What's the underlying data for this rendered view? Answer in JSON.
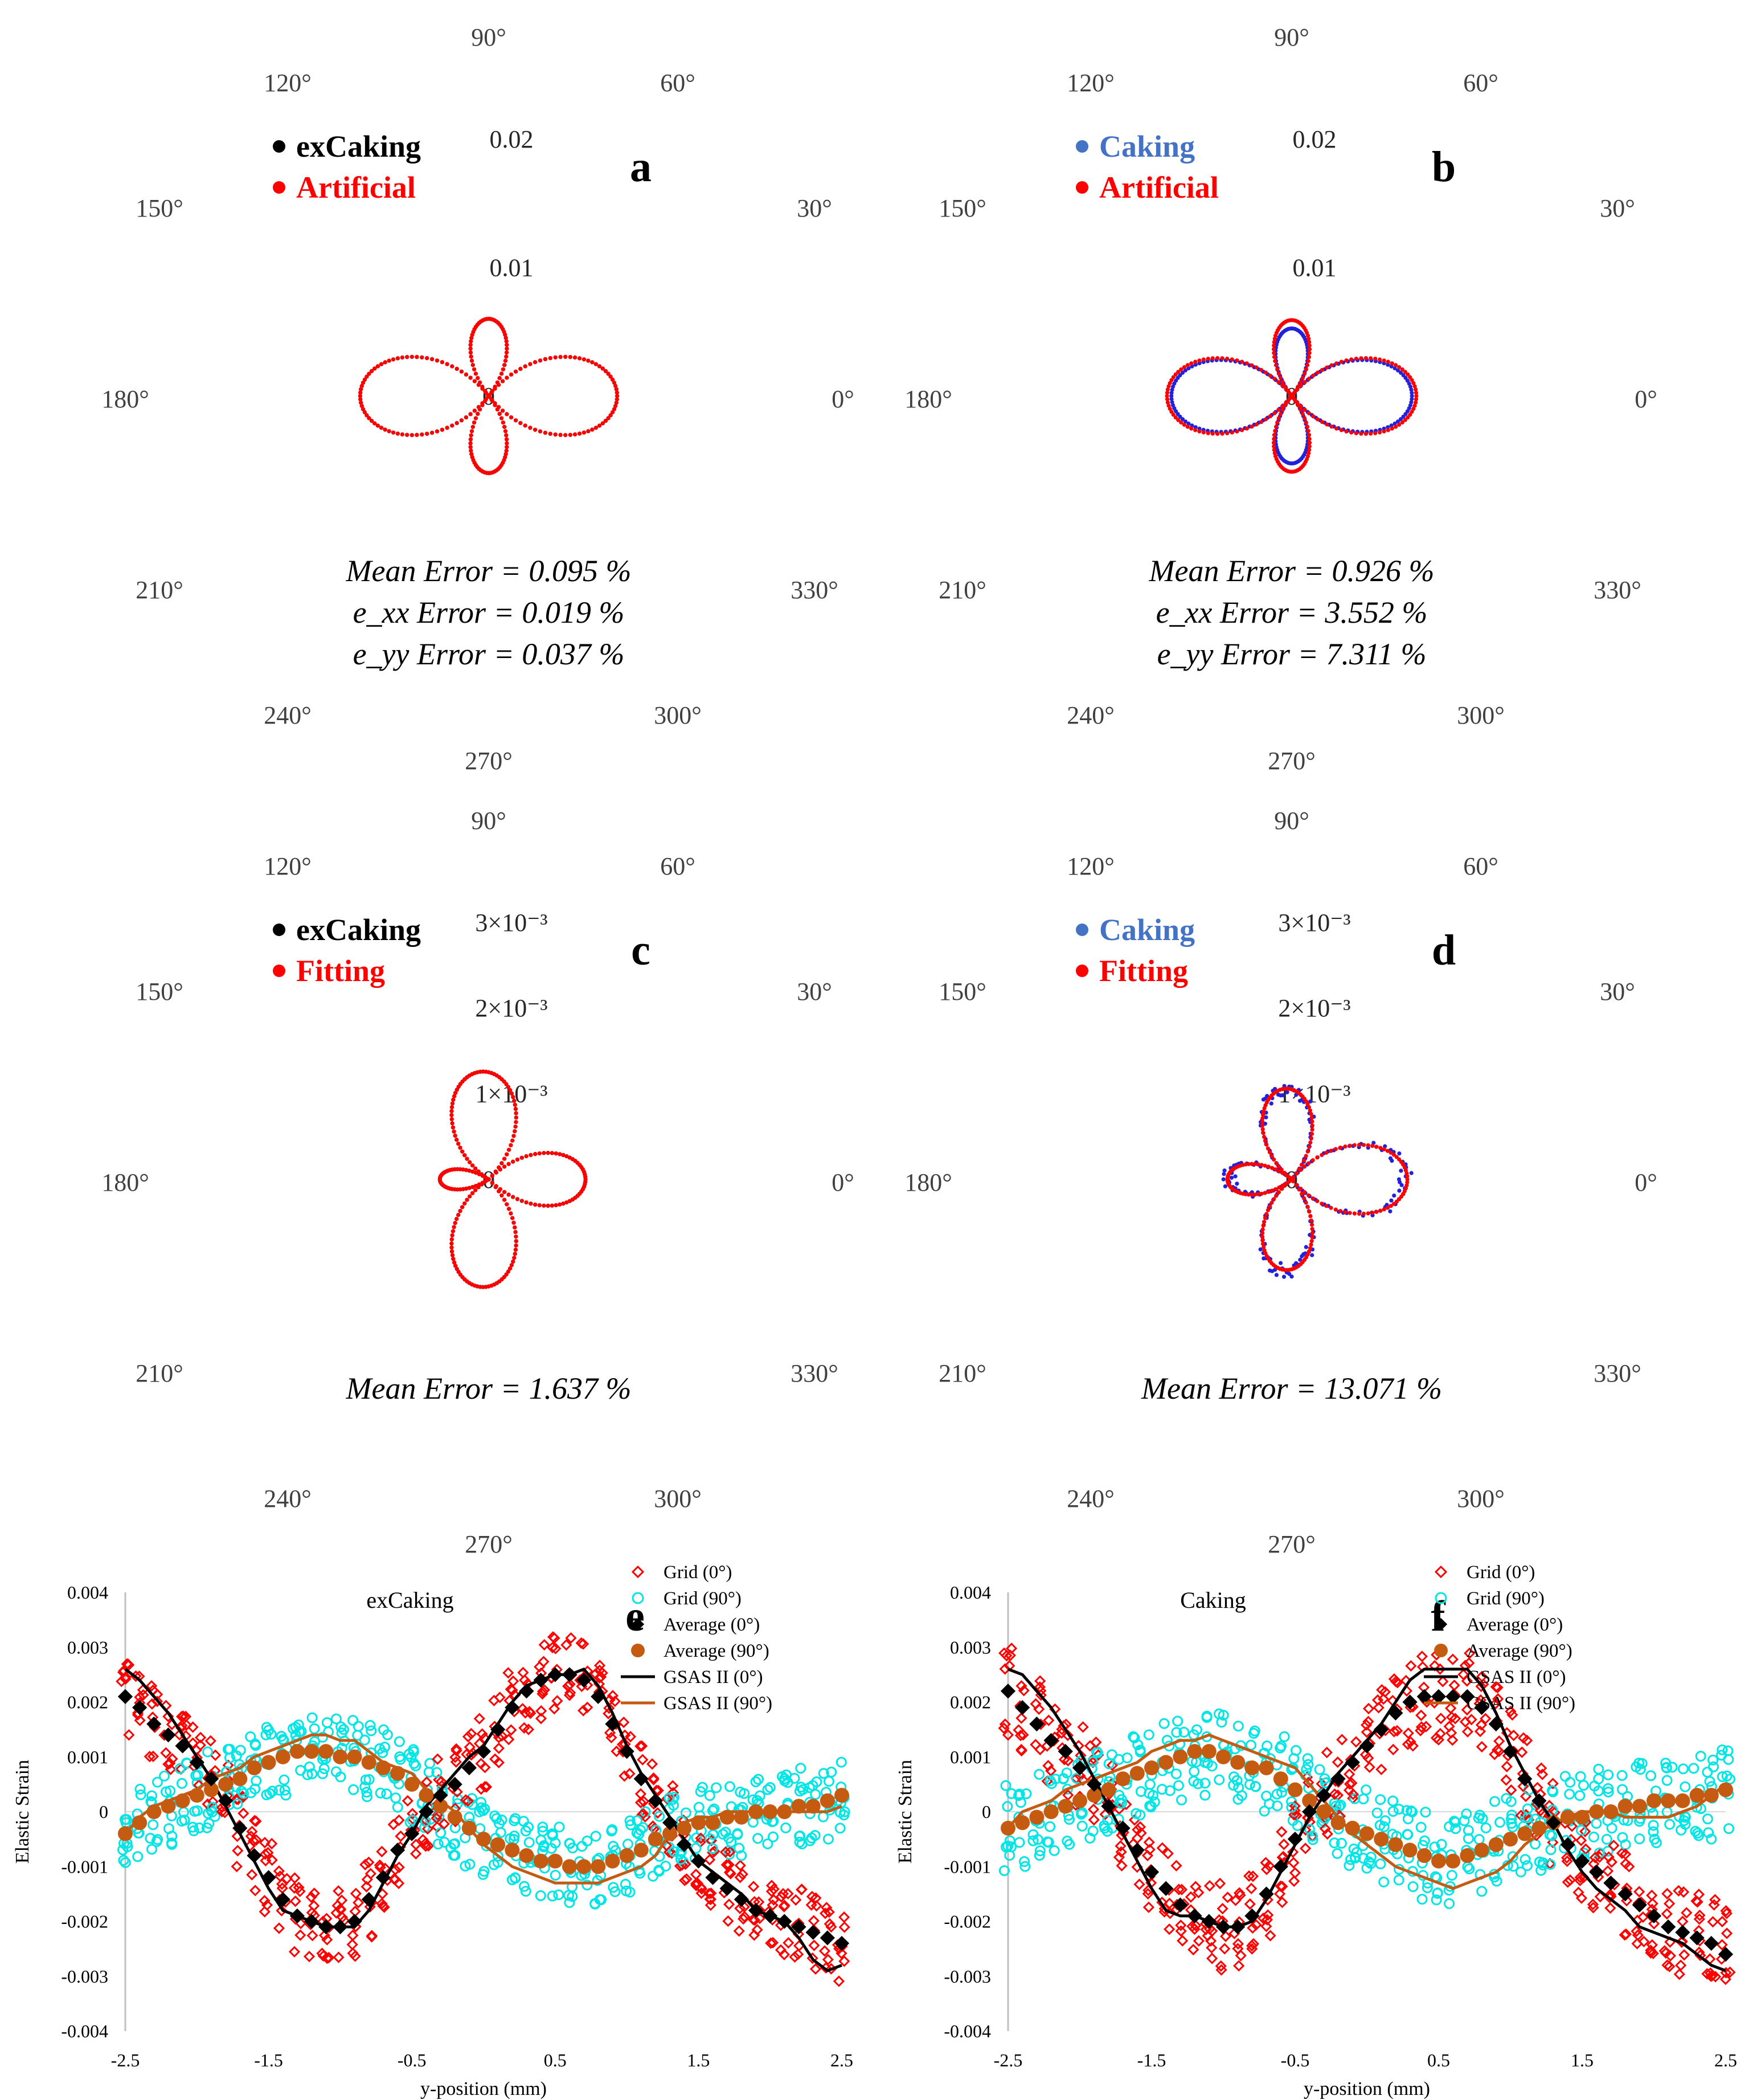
{
  "figure": {
    "angle_labels": [
      "0°",
      "30°",
      "60°",
      "90°",
      "120°",
      "150°",
      "180°",
      "210°",
      "240°",
      "270°",
      "300°",
      "330°"
    ]
  },
  "chart_data": [
    {
      "id": "a",
      "type": "polar",
      "panel_label": "a",
      "radial_ticks": [
        "0",
        "0.01",
        "0.02"
      ],
      "radial_range": [
        0,
        0.02
      ],
      "legend": [
        {
          "name": "exCaking",
          "color": "#000000",
          "legend_color": "#000000"
        },
        {
          "name": "Artificial",
          "color": "#ff0000",
          "legend_color": "#ff0000"
        }
      ],
      "strain_model": {
        "a": 0.008,
        "c": 0.002,
        "b": 0.0,
        "abs": true
      },
      "error_lines": [
        "Mean Error = 0.095 %",
        "e_xx Error = 0.019 %",
        "e_yy Error = 0.037 %"
      ]
    },
    {
      "id": "b",
      "type": "polar",
      "panel_label": "b",
      "radial_ticks": [
        "0",
        "0.01",
        "0.02"
      ],
      "radial_range": [
        0,
        0.02
      ],
      "legend": [
        {
          "name": "Caking",
          "color": "#2222dd",
          "legend_color": "#4472c4"
        },
        {
          "name": "Artificial",
          "color": "#ff0000",
          "legend_color": "#ff0000"
        }
      ],
      "strain_model": {
        "a": 0.0078,
        "c": 0.0019,
        "b": 0.0,
        "abs": true,
        "series1_scale": [
          0.965,
          0.89
        ]
      },
      "error_lines": [
        "Mean Error = 0.926 %",
        "e_xx Error = 3.552 %",
        "e_yy Error = 7.311 %"
      ]
    },
    {
      "id": "c",
      "type": "polar",
      "panel_label": "c",
      "radial_ticks": [
        "0",
        "1×10⁻³",
        "2×10⁻³",
        "3×10⁻³"
      ],
      "radial_range": [
        0,
        0.003
      ],
      "legend": [
        {
          "name": "exCaking",
          "color": "#000000",
          "legend_color": "#000000"
        },
        {
          "name": "Fitting",
          "color": "#ff0000",
          "legend_color": "#ff0000"
        }
      ],
      "strain_model": {
        "a": 0.00105,
        "c": -0.0002,
        "b": 0.00028,
        "abs": true
      },
      "error_lines": [
        "Mean Error = 1.637 %"
      ]
    },
    {
      "id": "d",
      "type": "polar",
      "panel_label": "d",
      "radial_ticks": [
        "0",
        "1×10⁻³",
        "2×10⁻³",
        "3×10⁻³"
      ],
      "radial_range": [
        0,
        0.003
      ],
      "legend": [
        {
          "name": "Caking",
          "color": "#2222dd",
          "legend_color": "#4472c4"
        },
        {
          "name": "Fitting",
          "color": "#ff0000",
          "legend_color": "#ff0000"
        }
      ],
      "strain_model": {
        "a": 0.00105,
        "c": 0.0,
        "b": 0.0003,
        "abs": true,
        "noise": 7e-05
      },
      "error_lines": [
        "Mean Error = 13.071 %"
      ]
    },
    {
      "id": "e",
      "type": "scatter",
      "panel_label": "e",
      "title": "exCaking",
      "xlabel": "y-position (mm)",
      "ylabel": "Elastic Strain",
      "xlim": [
        -2.5,
        2.5
      ],
      "ylim": [
        -0.004,
        0.004
      ],
      "xticks": [
        "-2.5",
        "-1.5",
        "-0.5",
        "0.5",
        "1.5",
        "2.5"
      ],
      "yticks": [
        "0.004",
        "0.003",
        "0.002",
        "0.001",
        "0",
        "-0.001",
        "-0.002",
        "-0.003",
        "-0.004"
      ],
      "legend": [
        "Grid (0°)",
        "Grid (90°)",
        "Average (0°)",
        "Average (90°)",
        "GSAS II (0°)",
        "GSAS II (90°)"
      ],
      "x": [
        -2.5,
        -2.4,
        -2.3,
        -2.2,
        -2.1,
        -2.0,
        -1.9,
        -1.8,
        -1.7,
        -1.6,
        -1.5,
        -1.4,
        -1.3,
        -1.2,
        -1.1,
        -1.0,
        -0.9,
        -0.8,
        -0.7,
        -0.6,
        -0.5,
        -0.4,
        -0.3,
        -0.2,
        -0.1,
        0.0,
        0.1,
        0.2,
        0.3,
        0.4,
        0.5,
        0.6,
        0.7,
        0.8,
        0.9,
        1.0,
        1.1,
        1.2,
        1.3,
        1.4,
        1.5,
        1.6,
        1.7,
        1.8,
        1.9,
        2.0,
        2.1,
        2.2,
        2.3,
        2.4,
        2.5
      ],
      "average_0": [
        0.0021,
        0.0019,
        0.0016,
        0.0014,
        0.0012,
        0.0009,
        0.0006,
        0.0002,
        -0.0003,
        -0.0008,
        -0.0012,
        -0.0016,
        -0.0019,
        -0.002,
        -0.0021,
        -0.0021,
        -0.002,
        -0.0016,
        -0.0012,
        -0.0007,
        -0.0004,
        0.0,
        0.0003,
        0.0005,
        0.0008,
        0.0011,
        0.0015,
        0.0019,
        0.0022,
        0.0024,
        0.0025,
        0.0025,
        0.0024,
        0.0021,
        0.0016,
        0.0011,
        0.0006,
        0.0002,
        -0.0002,
        -0.0006,
        -0.0009,
        -0.0012,
        -0.0014,
        -0.0016,
        -0.0018,
        -0.0019,
        -0.002,
        -0.0021,
        -0.0022,
        -0.0023,
        -0.0024
      ],
      "average_90": [
        -0.0004,
        -0.0002,
        0.0,
        0.0001,
        0.0002,
        0.0003,
        0.0004,
        0.0005,
        0.0006,
        0.0008,
        0.0009,
        0.001,
        0.0011,
        0.0011,
        0.0011,
        0.001,
        0.001,
        0.0009,
        0.0008,
        0.0007,
        0.0005,
        0.0003,
        0.0001,
        -0.0001,
        -0.0003,
        -0.0005,
        -0.0006,
        -0.0007,
        -0.0008,
        -0.0009,
        -0.0009,
        -0.001,
        -0.001,
        -0.001,
        -0.0009,
        -0.0008,
        -0.0007,
        -0.0005,
        -0.0004,
        -0.0003,
        -0.0002,
        -0.0002,
        -0.0001,
        -0.0001,
        0.0,
        0.0,
        0.0,
        0.0001,
        0.0001,
        0.0002,
        0.0003
      ],
      "gsas_0": [
        0.0026,
        0.0024,
        0.0021,
        0.0018,
        0.0014,
        0.001,
        0.0006,
        0.0001,
        -0.0004,
        -0.0009,
        -0.0014,
        -0.0018,
        -0.0019,
        -0.002,
        -0.0021,
        -0.0021,
        -0.0021,
        -0.0018,
        -0.0013,
        -0.0008,
        -0.0004,
        0.0001,
        0.0004,
        0.0007,
        0.001,
        0.0012,
        0.0016,
        0.002,
        0.0023,
        0.0024,
        0.0025,
        0.0025,
        0.0026,
        0.0023,
        0.0018,
        0.0012,
        0.0007,
        0.0003,
        -0.0001,
        -0.0005,
        -0.0009,
        -0.0011,
        -0.0013,
        -0.0015,
        -0.0018,
        -0.0019,
        -0.002,
        -0.0023,
        -0.0027,
        -0.0029,
        -0.0028
      ],
      "gsas_90": [
        -0.0004,
        -0.0001,
        0.0001,
        0.0002,
        0.0003,
        0.0004,
        0.0006,
        0.0007,
        0.0008,
        0.001,
        0.0011,
        0.0012,
        0.0013,
        0.0014,
        0.0014,
        0.0013,
        0.0013,
        0.0011,
        0.0009,
        0.0008,
        0.0007,
        0.0004,
        0.0002,
        0.0,
        -0.0003,
        -0.0006,
        -0.0008,
        -0.001,
        -0.0011,
        -0.0012,
        -0.0013,
        -0.0013,
        -0.0013,
        -0.0013,
        -0.0012,
        -0.0011,
        -0.001,
        -0.0008,
        -0.0004,
        -0.0002,
        -0.0001,
        -0.0001,
        0.0,
        0.0,
        0.0,
        0.0,
        0.0,
        0.0,
        0.0,
        0.0,
        0.0001
      ],
      "grid_spread": 0.0007,
      "seed": 7
    },
    {
      "id": "f",
      "type": "scatter",
      "panel_label": "f",
      "title": "Caking",
      "xlabel": "y-position (mm)",
      "ylabel": "Elastic Strain",
      "xlim": [
        -2.5,
        2.5
      ],
      "ylim": [
        -0.004,
        0.004
      ],
      "xticks": [
        "-2.5",
        "-1.5",
        "-0.5",
        "0.5",
        "1.5",
        "2.5"
      ],
      "yticks": [
        "0.004",
        "0.003",
        "0.002",
        "0.001",
        "0",
        "-0.001",
        "-0.002",
        "-0.003",
        "-0.004"
      ],
      "legend": [
        "Grid (0°)",
        "Grid (90°)",
        "Average (0°)",
        "Average (90°)",
        "GSAS II (0°)",
        "GSAS II (90°)"
      ],
      "x": [
        -2.5,
        -2.4,
        -2.3,
        -2.2,
        -2.1,
        -2.0,
        -1.9,
        -1.8,
        -1.7,
        -1.6,
        -1.5,
        -1.4,
        -1.3,
        -1.2,
        -1.1,
        -1.0,
        -0.9,
        -0.8,
        -0.7,
        -0.6,
        -0.5,
        -0.4,
        -0.3,
        -0.2,
        -0.1,
        0.0,
        0.1,
        0.2,
        0.3,
        0.4,
        0.5,
        0.6,
        0.7,
        0.8,
        0.9,
        1.0,
        1.1,
        1.2,
        1.3,
        1.4,
        1.5,
        1.6,
        1.7,
        1.8,
        1.9,
        2.0,
        2.1,
        2.2,
        2.3,
        2.4,
        2.5
      ],
      "average_0": [
        0.0022,
        0.0019,
        0.0016,
        0.0013,
        0.0011,
        0.0008,
        0.0005,
        0.0001,
        -0.0003,
        -0.0007,
        -0.0011,
        -0.0014,
        -0.0017,
        -0.0019,
        -0.002,
        -0.0021,
        -0.0021,
        -0.0019,
        -0.0015,
        -0.001,
        -0.0005,
        0.0,
        0.0003,
        0.0006,
        0.0009,
        0.0012,
        0.0015,
        0.0018,
        0.002,
        0.0021,
        0.0021,
        0.0021,
        0.0021,
        0.0019,
        0.0016,
        0.0011,
        0.0006,
        0.0002,
        -0.0002,
        -0.0006,
        -0.0009,
        -0.0011,
        -0.0013,
        -0.0015,
        -0.0017,
        -0.0019,
        -0.0021,
        -0.0022,
        -0.0023,
        -0.0024,
        -0.0026
      ],
      "average_90": [
        -0.0003,
        -0.0002,
        -0.0001,
        0.0,
        0.0001,
        0.0002,
        0.0003,
        0.0004,
        0.0006,
        0.0007,
        0.0008,
        0.0009,
        0.001,
        0.0011,
        0.0011,
        0.001,
        0.0009,
        0.0008,
        0.0008,
        0.0006,
        0.0004,
        0.0002,
        0.0,
        -0.0002,
        -0.0003,
        -0.0004,
        -0.0005,
        -0.0006,
        -0.0007,
        -0.0008,
        -0.0009,
        -0.0009,
        -0.0008,
        -0.0007,
        -0.0006,
        -0.0005,
        -0.0004,
        -0.0003,
        -0.0002,
        -0.0001,
        -0.0001,
        0.0,
        0.0,
        0.0001,
        0.0001,
        0.0002,
        0.0002,
        0.0002,
        0.0003,
        0.0003,
        0.0004
      ],
      "gsas_0": [
        0.0026,
        0.0025,
        0.0022,
        0.0019,
        0.0015,
        0.0011,
        0.0006,
        0.0001,
        -0.0004,
        -0.0009,
        -0.0014,
        -0.0018,
        -0.0019,
        -0.0019,
        -0.002,
        -0.0021,
        -0.0021,
        -0.002,
        -0.0016,
        -0.0011,
        -0.0006,
        -0.0001,
        0.0003,
        0.0007,
        0.001,
        0.0013,
        0.0016,
        0.002,
        0.0024,
        0.0026,
        0.0026,
        0.0026,
        0.0026,
        0.0023,
        0.0018,
        0.0012,
        0.0007,
        0.0002,
        -0.0002,
        -0.0007,
        -0.0011,
        -0.0014,
        -0.0016,
        -0.0018,
        -0.0021,
        -0.0022,
        -0.0023,
        -0.0024,
        -0.0026,
        -0.0028,
        -0.0029
      ],
      "gsas_90": [
        -0.0003,
        0.0,
        0.0001,
        0.0002,
        0.0004,
        0.0005,
        0.0006,
        0.0007,
        0.0008,
        0.0009,
        0.0011,
        0.0012,
        0.0013,
        0.0013,
        0.0014,
        0.0013,
        0.0012,
        0.0011,
        0.001,
        0.0009,
        0.0008,
        0.0005,
        0.0002,
        -0.0001,
        -0.0004,
        -0.0006,
        -0.0008,
        -0.001,
        -0.0011,
        -0.0012,
        -0.0013,
        -0.0014,
        -0.0013,
        -0.0012,
        -0.0011,
        -0.0009,
        -0.0006,
        -0.0004,
        -0.0002,
        -0.0001,
        0.0,
        0.0,
        0.0,
        -0.0001,
        -0.0001,
        -0.0001,
        -0.0001,
        0.0,
        0.0001,
        0.0003,
        0.0005
      ],
      "grid_spread": 0.0008,
      "seed": 19
    }
  ]
}
